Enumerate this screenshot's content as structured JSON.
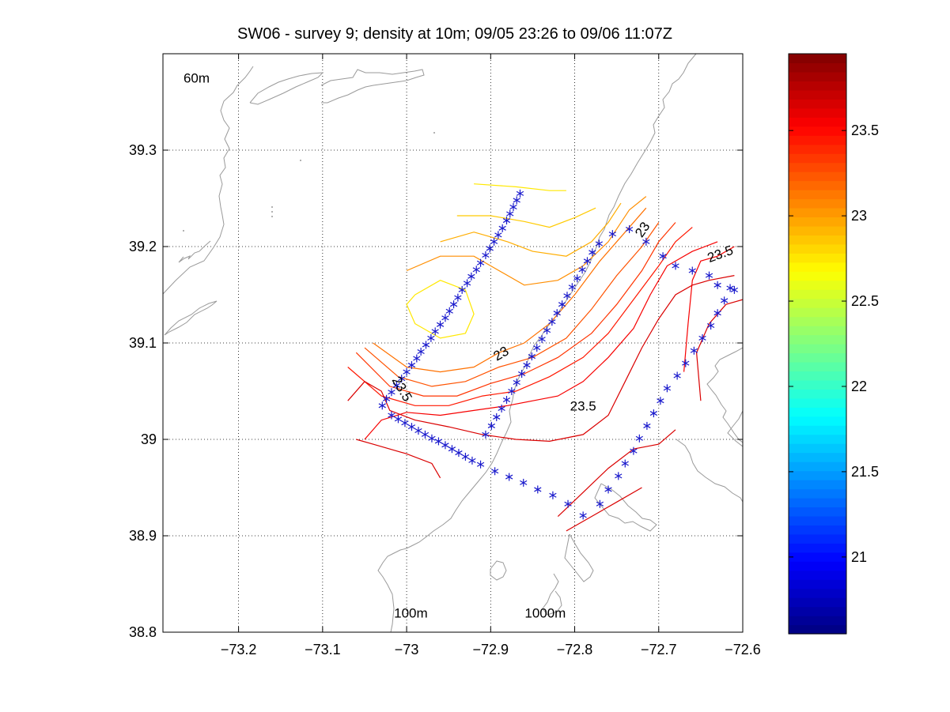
{
  "chart_data": {
    "type": "contour",
    "title": "SW06 - survey 9; density at 10m; 09/05 23:26 to 09/06 11:07Z",
    "xlim": [
      -73.29,
      -72.6
    ],
    "ylim": [
      38.8,
      39.4
    ],
    "xticks": [
      -73.2,
      -73.1,
      -73,
      -72.9,
      -72.8,
      -72.7,
      -72.6
    ],
    "xtick_labels": [
      "−73.2",
      "−73.1",
      "−73",
      "−72.9",
      "−72.8",
      "−72.7",
      "−72.6"
    ],
    "yticks": [
      38.8,
      38.9,
      39.0,
      39.1,
      39.2,
      39.3
    ],
    "ytick_labels": [
      "38.8",
      "38.9",
      "39",
      "39.1",
      "39.2",
      "39.3"
    ],
    "grid": true,
    "grid_style": "dotted",
    "colorbar": {
      "range": [
        20.55,
        23.95
      ],
      "ticks": [
        21,
        21.5,
        22,
        22.5,
        23,
        23.5
      ],
      "tick_labels": [
        "21",
        "21.5",
        "22",
        "22.5",
        "23",
        "23.5"
      ],
      "colormap": "jet"
    },
    "isobath_labels": [
      {
        "text": "60m",
        "lon": -73.25,
        "lat": 39.37
      },
      {
        "text": "100m",
        "lon": -72.995,
        "lat": 38.815
      },
      {
        "text": "1000m",
        "lon": -72.835,
        "lat": 38.815
      }
    ],
    "contour_labels": [
      {
        "text": "23",
        "lon": -72.885,
        "lat": 39.085,
        "angle": -30
      },
      {
        "text": "23.5",
        "lon": -72.79,
        "lat": 39.03,
        "angle": 0
      },
      {
        "text": "23",
        "lon": -72.715,
        "lat": 39.215,
        "angle": -55
      },
      {
        "text": "23.5",
        "lon": -72.625,
        "lat": 39.188,
        "angle": -20
      },
      {
        "text": "23.5",
        "lon": -73.01,
        "lat": 39.05,
        "angle": 60
      }
    ],
    "contour_levels": [
      22.75,
      22.85,
      22.95,
      23.05,
      23.15,
      23.25,
      23.35,
      23.45,
      23.55,
      23.65
    ],
    "contours": [
      {
        "level": 22.75,
        "points": [
          [
            -72.92,
            39.265
          ],
          [
            -72.87,
            39.262
          ],
          [
            -72.83,
            39.258
          ],
          [
            -72.81,
            39.258
          ]
        ]
      },
      {
        "level": 22.75,
        "points": [
          [
            -72.99,
            39.15
          ],
          [
            -73.0,
            39.14
          ],
          [
            -72.99,
            39.12
          ],
          [
            -72.96,
            39.105
          ],
          [
            -72.93,
            39.11
          ],
          [
            -72.92,
            39.13
          ],
          [
            -72.93,
            39.155
          ],
          [
            -72.96,
            39.165
          ],
          [
            -72.99,
            39.15
          ]
        ]
      },
      {
        "level": 22.85,
        "points": [
          [
            -72.94,
            39.232
          ],
          [
            -72.9,
            39.232
          ],
          [
            -72.86,
            39.226
          ],
          [
            -72.83,
            39.22
          ],
          [
            -72.8,
            39.23
          ],
          [
            -72.775,
            39.24
          ]
        ]
      },
      {
        "level": 22.95,
        "points": [
          [
            -72.96,
            39.205
          ],
          [
            -72.92,
            39.215
          ],
          [
            -72.88,
            39.205
          ],
          [
            -72.85,
            39.195
          ],
          [
            -72.81,
            39.19
          ],
          [
            -72.78,
            39.205
          ],
          [
            -72.76,
            39.225
          ],
          [
            -72.745,
            39.245
          ]
        ]
      },
      {
        "level": 23.05,
        "points": [
          [
            -73.0,
            39.175
          ],
          [
            -72.96,
            39.19
          ],
          [
            -72.92,
            39.19
          ],
          [
            -72.89,
            39.175
          ],
          [
            -72.86,
            39.16
          ],
          [
            -72.82,
            39.165
          ],
          [
            -72.79,
            39.18
          ],
          [
            -72.76,
            39.205
          ],
          [
            -72.735,
            39.238
          ],
          [
            -72.715,
            39.252
          ]
        ]
      },
      {
        "level": 23.15,
        "points": [
          [
            -73.04,
            39.1
          ],
          [
            -73.0,
            39.075
          ],
          [
            -72.96,
            39.07
          ],
          [
            -72.92,
            39.075
          ],
          [
            -72.89,
            39.09
          ],
          [
            -72.86,
            39.1
          ],
          [
            -72.83,
            39.12
          ],
          [
            -72.8,
            39.15
          ],
          [
            -72.77,
            39.185
          ],
          [
            -72.74,
            39.215
          ],
          [
            -72.715,
            39.24
          ]
        ]
      },
      {
        "level": 23.25,
        "points": [
          [
            -73.05,
            39.095
          ],
          [
            -73.01,
            39.065
          ],
          [
            -72.97,
            39.055
          ],
          [
            -72.93,
            39.06
          ],
          [
            -72.89,
            39.075
          ],
          [
            -72.85,
            39.085
          ],
          [
            -72.81,
            39.105
          ],
          [
            -72.78,
            39.135
          ],
          [
            -72.75,
            39.17
          ],
          [
            -72.72,
            39.2
          ],
          [
            -72.7,
            39.225
          ]
        ]
      },
      {
        "level": 23.35,
        "points": [
          [
            -73.06,
            39.09
          ],
          [
            -73.02,
            39.055
          ],
          [
            -72.98,
            39.045
          ],
          [
            -72.94,
            39.045
          ],
          [
            -72.9,
            39.058
          ],
          [
            -72.86,
            39.068
          ],
          [
            -72.82,
            39.085
          ],
          [
            -72.78,
            39.11
          ],
          [
            -72.75,
            39.14
          ],
          [
            -72.72,
            39.175
          ],
          [
            -72.7,
            39.205
          ],
          [
            -72.68,
            39.225
          ]
        ]
      },
      {
        "level": 23.45,
        "points": [
          [
            -73.07,
            39.075
          ],
          [
            -73.03,
            39.045
          ],
          [
            -72.99,
            39.035
          ],
          [
            -72.95,
            39.035
          ],
          [
            -72.91,
            39.045
          ],
          [
            -72.87,
            39.05
          ],
          [
            -72.83,
            39.065
          ],
          [
            -72.79,
            39.085
          ],
          [
            -72.76,
            39.11
          ],
          [
            -72.73,
            39.145
          ],
          [
            -72.7,
            39.18
          ],
          [
            -72.68,
            39.205
          ],
          [
            -72.66,
            39.22
          ]
        ]
      },
      {
        "level": 23.55,
        "points": [
          [
            -73.05,
            39.0
          ],
          [
            -73.03,
            39.02
          ],
          [
            -73.0,
            39.028
          ],
          [
            -72.96,
            39.025
          ],
          [
            -72.92,
            39.03
          ],
          [
            -72.88,
            39.035
          ],
          [
            -72.85,
            39.04
          ],
          [
            -72.82,
            39.045
          ],
          [
            -72.79,
            39.06
          ],
          [
            -72.76,
            39.085
          ],
          [
            -72.73,
            39.115
          ],
          [
            -72.71,
            39.15
          ],
          [
            -72.69,
            39.18
          ],
          [
            -72.66,
            39.195
          ],
          [
            -72.63,
            39.205
          ]
        ]
      },
      {
        "level": 23.55,
        "points": [
          [
            -72.67,
            39.07
          ],
          [
            -72.665,
            39.12
          ],
          [
            -72.66,
            39.165
          ],
          [
            -72.65,
            39.185
          ],
          [
            -72.63,
            39.19
          ],
          [
            -72.61,
            39.2
          ]
        ]
      },
      {
        "level": 23.65,
        "points": [
          [
            -73.07,
            39.04
          ],
          [
            -73.05,
            39.06
          ],
          [
            -73.03,
            39.05
          ],
          [
            -73.02,
            39.03
          ],
          [
            -72.99,
            39.02
          ],
          [
            -72.95,
            39.013
          ],
          [
            -72.91,
            39.005
          ],
          [
            -72.87,
            39.0
          ],
          [
            -72.83,
            38.998
          ],
          [
            -72.79,
            39.005
          ],
          [
            -72.76,
            39.025
          ],
          [
            -72.74,
            39.06
          ],
          [
            -72.72,
            39.095
          ],
          [
            -72.7,
            39.125
          ],
          [
            -72.68,
            39.15
          ],
          [
            -72.66,
            39.16
          ],
          [
            -72.64,
            39.165
          ],
          [
            -72.61,
            39.17
          ]
        ]
      },
      {
        "level": 23.65,
        "points": [
          [
            -72.65,
            39.04
          ],
          [
            -72.655,
            39.09
          ],
          [
            -72.64,
            39.12
          ],
          [
            -72.62,
            39.14
          ],
          [
            -72.6,
            39.145
          ]
        ]
      },
      {
        "level": 23.65,
        "points": [
          [
            -73.06,
            39.0
          ],
          [
            -73.04,
            38.995
          ],
          [
            -73.02,
            38.99
          ],
          [
            -73.0,
            38.985
          ],
          [
            -72.97,
            38.975
          ],
          [
            -72.96,
            38.96
          ]
        ]
      },
      {
        "level": 23.65,
        "points": [
          [
            -72.82,
            38.92
          ],
          [
            -72.79,
            38.945
          ],
          [
            -72.76,
            38.97
          ],
          [
            -72.73,
            38.99
          ],
          [
            -72.7,
            38.995
          ],
          [
            -72.68,
            39.01
          ]
        ]
      },
      {
        "level": 23.65,
        "points": [
          [
            -72.81,
            38.905
          ],
          [
            -72.78,
            38.92
          ],
          [
            -72.75,
            38.935
          ],
          [
            -72.72,
            38.95
          ]
        ]
      }
    ],
    "stations": [
      [
        -72.865,
        39.255
      ],
      [
        -72.869,
        39.248
      ],
      [
        -72.873,
        39.241
      ],
      [
        -72.877,
        39.234
      ],
      [
        -72.881,
        39.227
      ],
      [
        -72.886,
        39.219
      ],
      [
        -72.891,
        39.212
      ],
      [
        -72.896,
        39.205
      ],
      [
        -72.901,
        39.198
      ],
      [
        -72.906,
        39.191
      ],
      [
        -72.912,
        39.183
      ],
      [
        -72.917,
        39.176
      ],
      [
        -72.923,
        39.169
      ],
      [
        -72.928,
        39.162
      ],
      [
        -72.934,
        39.155
      ],
      [
        -72.939,
        39.147
      ],
      [
        -72.944,
        39.14
      ],
      [
        -72.949,
        39.133
      ],
      [
        -72.954,
        39.126
      ],
      [
        -72.96,
        39.119
      ],
      [
        -72.966,
        39.112
      ],
      [
        -72.971,
        39.105
      ],
      [
        -72.977,
        39.098
      ],
      [
        -72.983,
        39.091
      ],
      [
        -72.988,
        39.084
      ],
      [
        -72.994,
        39.077
      ],
      [
        -73.0,
        39.07
      ],
      [
        -73.006,
        39.063
      ],
      [
        -73.012,
        39.056
      ],
      [
        -73.018,
        39.049
      ],
      [
        -73.024,
        39.042
      ],
      [
        -73.029,
        39.035
      ],
      [
        -73.018,
        39.025
      ],
      [
        -73.01,
        39.021
      ],
      [
        -73.002,
        39.017
      ],
      [
        -72.994,
        39.013
      ],
      [
        -72.986,
        39.009
      ],
      [
        -72.978,
        39.005
      ],
      [
        -72.97,
        39.001
      ],
      [
        -72.962,
        38.998
      ],
      [
        -72.954,
        38.994
      ],
      [
        -72.946,
        38.99
      ],
      [
        -72.938,
        38.986
      ],
      [
        -72.93,
        38.982
      ],
      [
        -72.922,
        38.978
      ],
      [
        -72.912,
        38.974
      ],
      [
        -72.895,
        38.967
      ],
      [
        -72.878,
        38.961
      ],
      [
        -72.861,
        38.955
      ],
      [
        -72.844,
        38.948
      ],
      [
        -72.826,
        38.942
      ],
      [
        -72.808,
        38.933
      ],
      [
        -72.79,
        38.921
      ],
      [
        -72.77,
        38.933
      ],
      [
        -72.76,
        38.948
      ],
      [
        -72.748,
        38.962
      ],
      [
        -72.74,
        38.975
      ],
      [
        -72.73,
        38.988
      ],
      [
        -72.723,
        39.001
      ],
      [
        -72.714,
        39.014
      ],
      [
        -72.706,
        39.027
      ],
      [
        -72.698,
        39.04
      ],
      [
        -72.69,
        39.053
      ],
      [
        -72.678,
        39.066
      ],
      [
        -72.668,
        39.079
      ],
      [
        -72.658,
        39.092
      ],
      [
        -72.648,
        39.105
      ],
      [
        -72.638,
        39.118
      ],
      [
        -72.63,
        39.131
      ],
      [
        -72.622,
        39.144
      ],
      [
        -72.615,
        39.157
      ],
      [
        -72.906,
        39.005
      ],
      [
        -72.899,
        39.014
      ],
      [
        -72.893,
        39.023
      ],
      [
        -72.887,
        39.032
      ],
      [
        -72.881,
        39.041
      ],
      [
        -72.875,
        39.05
      ],
      [
        -72.869,
        39.059
      ],
      [
        -72.863,
        39.068
      ],
      [
        -72.857,
        39.077
      ],
      [
        -72.851,
        39.086
      ],
      [
        -72.845,
        39.095
      ],
      [
        -72.839,
        39.104
      ],
      [
        -72.833,
        39.113
      ],
      [
        -72.827,
        39.122
      ],
      [
        -72.821,
        39.131
      ],
      [
        -72.815,
        39.14
      ],
      [
        -72.809,
        39.149
      ],
      [
        -72.803,
        39.158
      ],
      [
        -72.797,
        39.167
      ],
      [
        -72.791,
        39.176
      ],
      [
        -72.785,
        39.185
      ],
      [
        -72.779,
        39.194
      ],
      [
        -72.771,
        39.203
      ],
      [
        -72.755,
        39.213
      ],
      [
        -72.735,
        39.218
      ],
      [
        -72.715,
        39.205
      ],
      [
        -72.695,
        39.19
      ],
      [
        -72.68,
        39.18
      ],
      [
        -72.66,
        39.175
      ],
      [
        -72.64,
        39.17
      ],
      [
        -72.63,
        39.16
      ],
      [
        -72.61,
        39.155
      ]
    ]
  }
}
